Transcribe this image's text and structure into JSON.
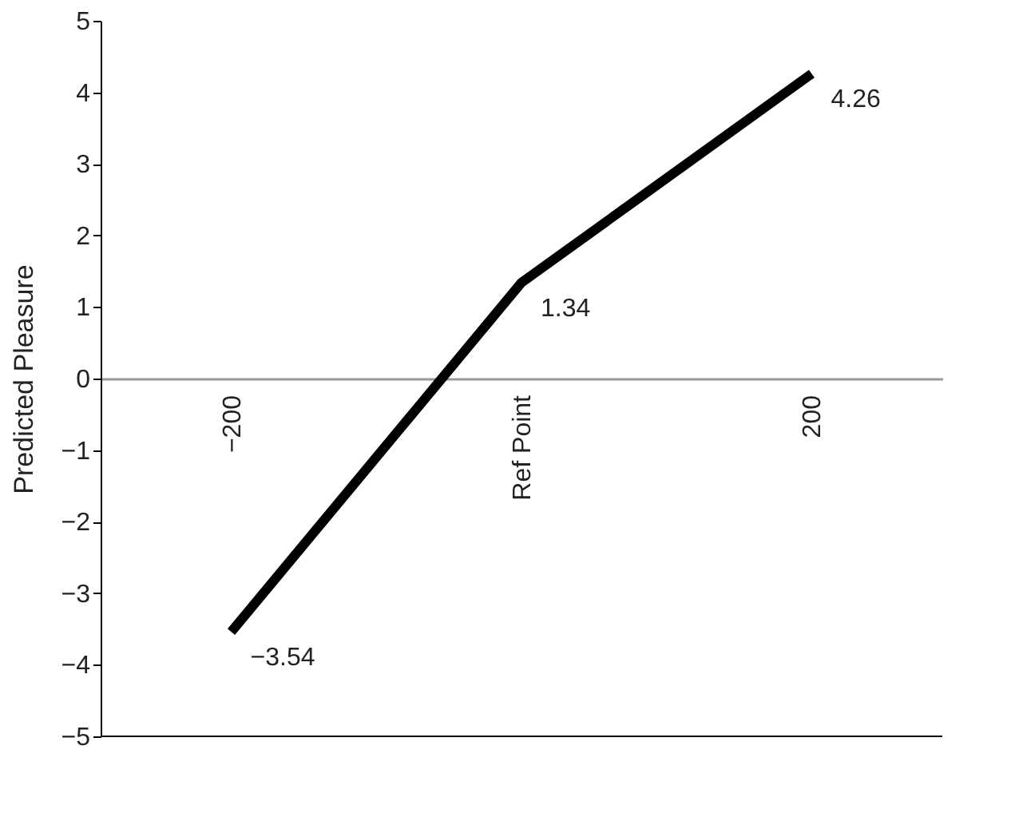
{
  "chart_data": {
    "type": "line",
    "ylabel": "Predicted Pleasure",
    "categories": [
      "−200",
      "Ref Point",
      "200"
    ],
    "series": [
      {
        "color": "#000000",
        "values": [
          -3.54,
          1.34,
          4.26
        ],
        "value_labels": [
          "−3.54",
          "1.34",
          "4.26"
        ]
      }
    ],
    "ylim": [
      -5,
      5
    ],
    "yticks": [
      {
        "value": -5,
        "label": "−5"
      },
      {
        "value": -4,
        "label": "−4"
      },
      {
        "value": -3,
        "label": "−3"
      },
      {
        "value": -2,
        "label": "−2"
      },
      {
        "value": -1,
        "label": "−1"
      },
      0,
      1,
      2,
      3,
      4,
      5
    ],
    "marker": "none",
    "line_style": "solid"
  }
}
